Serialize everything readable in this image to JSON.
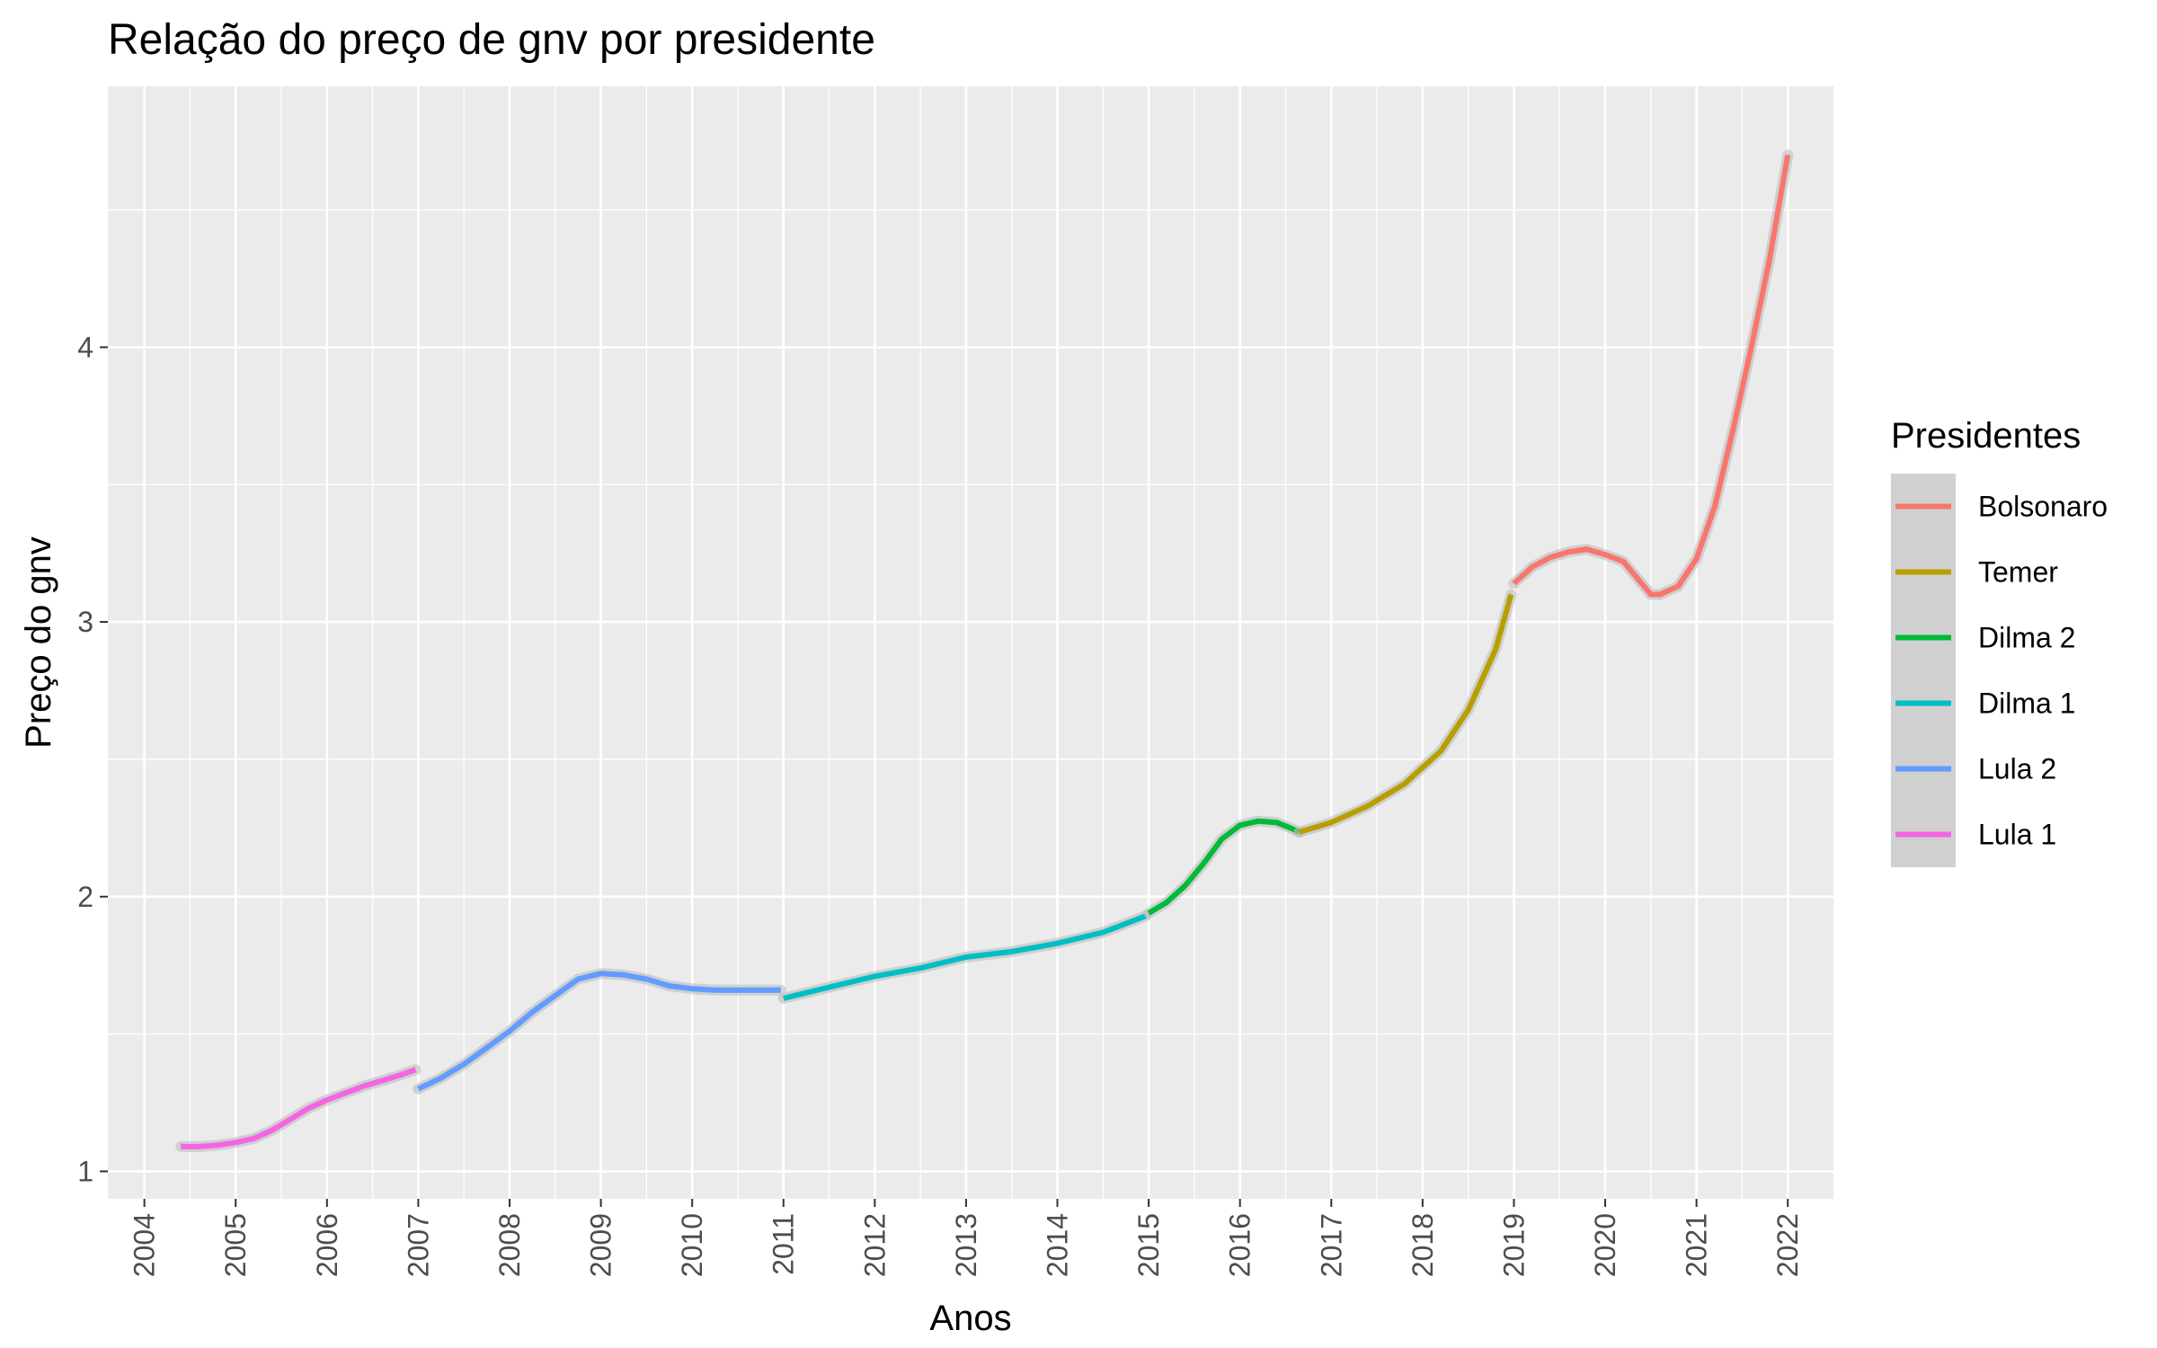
{
  "chart_data": {
    "type": "line",
    "title": "Relação do preço de gnv por presidente",
    "xlabel": "Anos",
    "ylabel": "Preço do gnv",
    "xlim": [
      2003.6,
      2022.5
    ],
    "ylim": [
      0.9,
      4.95
    ],
    "x_ticks": [
      2004,
      2005,
      2006,
      2007,
      2008,
      2009,
      2010,
      2011,
      2012,
      2013,
      2014,
      2015,
      2016,
      2017,
      2018,
      2019,
      2020,
      2021,
      2022
    ],
    "y_ticks": [
      1,
      2,
      3,
      4
    ],
    "y_minor_ticks": [
      1.5,
      2.5,
      3.5,
      4.5
    ],
    "grid": true,
    "legend": {
      "title": "Presidentes",
      "position": "right"
    },
    "series": [
      {
        "name": "Lula 1",
        "color": "#F564E3",
        "points": [
          [
            2004.4,
            1.09
          ],
          [
            2004.6,
            1.09
          ],
          [
            2004.8,
            1.095
          ],
          [
            2005.0,
            1.105
          ],
          [
            2005.2,
            1.12
          ],
          [
            2005.4,
            1.15
          ],
          [
            2005.6,
            1.19
          ],
          [
            2005.8,
            1.23
          ],
          [
            2006.0,
            1.26
          ],
          [
            2006.2,
            1.285
          ],
          [
            2006.4,
            1.31
          ],
          [
            2006.6,
            1.33
          ],
          [
            2006.8,
            1.35
          ],
          [
            2006.97,
            1.37
          ]
        ]
      },
      {
        "name": "Lula 2",
        "color": "#619CFF",
        "points": [
          [
            2007.0,
            1.3
          ],
          [
            2007.25,
            1.34
          ],
          [
            2007.5,
            1.39
          ],
          [
            2007.75,
            1.45
          ],
          [
            2008.0,
            1.51
          ],
          [
            2008.25,
            1.58
          ],
          [
            2008.5,
            1.64
          ],
          [
            2008.75,
            1.7
          ],
          [
            2009.0,
            1.72
          ],
          [
            2009.25,
            1.715
          ],
          [
            2009.5,
            1.7
          ],
          [
            2009.75,
            1.675
          ],
          [
            2010.0,
            1.665
          ],
          [
            2010.25,
            1.66
          ],
          [
            2010.5,
            1.66
          ],
          [
            2010.75,
            1.66
          ],
          [
            2010.97,
            1.66
          ]
        ]
      },
      {
        "name": "Dilma 1",
        "color": "#00BFC4",
        "points": [
          [
            2011.0,
            1.63
          ],
          [
            2011.5,
            1.67
          ],
          [
            2012.0,
            1.71
          ],
          [
            2012.5,
            1.74
          ],
          [
            2013.0,
            1.78
          ],
          [
            2013.5,
            1.8
          ],
          [
            2014.0,
            1.83
          ],
          [
            2014.5,
            1.87
          ],
          [
            2014.97,
            1.93
          ]
        ]
      },
      {
        "name": "Dilma 2",
        "color": "#00BA38",
        "points": [
          [
            2015.0,
            1.94
          ],
          [
            2015.2,
            1.98
          ],
          [
            2015.4,
            2.04
          ],
          [
            2015.6,
            2.12
          ],
          [
            2015.8,
            2.21
          ],
          [
            2016.0,
            2.26
          ],
          [
            2016.2,
            2.275
          ],
          [
            2016.4,
            2.27
          ],
          [
            2016.55,
            2.25
          ],
          [
            2016.65,
            2.235
          ]
        ]
      },
      {
        "name": "Temer",
        "color": "#B79F00",
        "points": [
          [
            2016.65,
            2.235
          ],
          [
            2017.0,
            2.27
          ],
          [
            2017.4,
            2.33
          ],
          [
            2017.8,
            2.41
          ],
          [
            2018.2,
            2.53
          ],
          [
            2018.5,
            2.68
          ],
          [
            2018.8,
            2.9
          ],
          [
            2018.97,
            3.1
          ]
        ]
      },
      {
        "name": "Bolsonaro",
        "color": "#F8766D",
        "points": [
          [
            2019.0,
            3.14
          ],
          [
            2019.2,
            3.2
          ],
          [
            2019.4,
            3.235
          ],
          [
            2019.6,
            3.255
          ],
          [
            2019.8,
            3.265
          ],
          [
            2020.0,
            3.245
          ],
          [
            2020.2,
            3.22
          ],
          [
            2020.4,
            3.14
          ],
          [
            2020.5,
            3.1
          ],
          [
            2020.6,
            3.1
          ],
          [
            2020.8,
            3.13
          ],
          [
            2021.0,
            3.23
          ],
          [
            2021.2,
            3.42
          ],
          [
            2021.4,
            3.7
          ],
          [
            2021.6,
            4.0
          ],
          [
            2021.8,
            4.32
          ],
          [
            2022.0,
            4.7
          ]
        ]
      }
    ]
  }
}
